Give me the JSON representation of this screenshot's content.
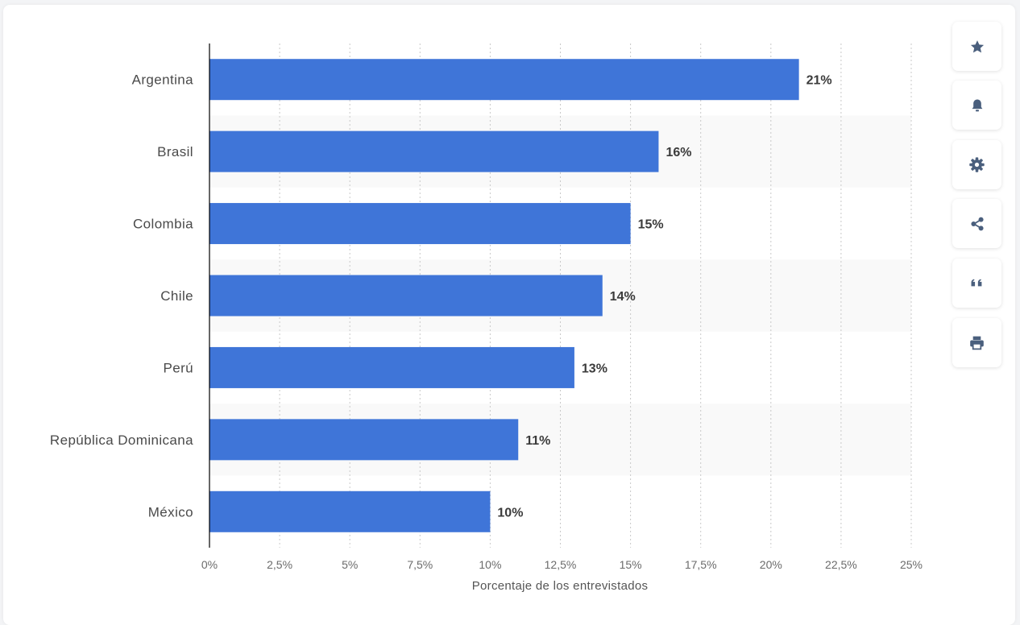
{
  "chart_data": {
    "type": "bar",
    "orientation": "horizontal",
    "categories": [
      "Argentina",
      "Brasil",
      "Colombia",
      "Chile",
      "Perú",
      "República Dominicana",
      "México"
    ],
    "values": [
      21,
      16,
      15,
      14,
      13,
      11,
      10
    ],
    "data_labels": [
      "21%",
      "16%",
      "15%",
      "14%",
      "13%",
      "11%",
      "10%"
    ],
    "xlabel": "Porcentaje de los entrevistados",
    "ylabel": "",
    "xlim": [
      0,
      25
    ],
    "ticks": [
      0,
      2.5,
      5,
      7.5,
      10,
      12.5,
      15,
      17.5,
      20,
      22.5,
      25
    ],
    "tick_labels": [
      "0%",
      "2,5%",
      "5%",
      "7,5%",
      "10%",
      "12,5%",
      "15%",
      "17,5%",
      "20%",
      "22,5%",
      "25%"
    ],
    "grid": true,
    "bar_color": "#3f75d8",
    "stripe_color": "#f9f9f9"
  },
  "toolbar": {
    "buttons": [
      {
        "name": "favorite-button",
        "icon": "star-icon"
      },
      {
        "name": "notification-button",
        "icon": "bell-icon"
      },
      {
        "name": "settings-button",
        "icon": "gear-icon"
      },
      {
        "name": "share-button",
        "icon": "share-icon"
      },
      {
        "name": "cite-button",
        "icon": "quote-icon"
      },
      {
        "name": "print-button",
        "icon": "print-icon"
      }
    ],
    "icon_color": "#4a5f7d"
  }
}
